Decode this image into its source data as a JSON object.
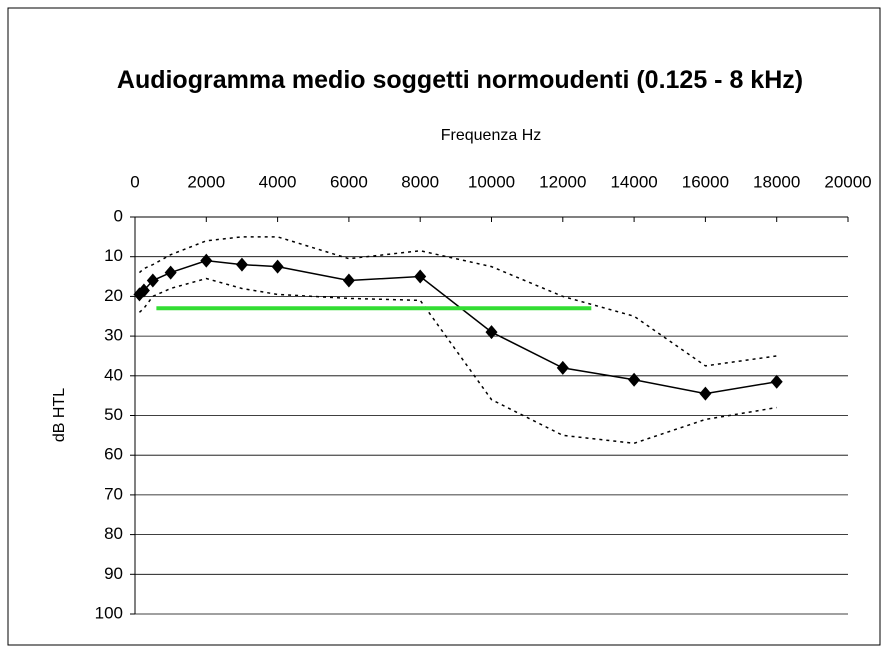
{
  "chart_data": {
    "type": "line",
    "title": "Audiogramma medio soggetti normoudenti (0.125 - 8 kHz)",
    "x_label": "Frequenza Hz",
    "y_label": "dB HTL",
    "x": [
      125,
      250,
      500,
      1000,
      2000,
      3000,
      4000,
      6000,
      8000,
      10000,
      12000,
      14000,
      16000,
      18000
    ],
    "series": [
      {
        "color": "#000000",
        "style": "solid",
        "marker": "diamond",
        "values": [
          19.5,
          18.5,
          16,
          14,
          11,
          12,
          12.5,
          16,
          15,
          29,
          38,
          41,
          44.5,
          41.5
        ]
      },
      {
        "color": "#000000",
        "style": "dashed",
        "values": [
          14,
          13,
          12,
          9.5,
          6,
          5,
          5,
          10.5,
          8.5,
          12.5,
          20,
          25,
          37.5,
          35
        ]
      },
      {
        "color": "#000000",
        "style": "dashed",
        "values": [
          24,
          23,
          20,
          18,
          15.5,
          18,
          19.5,
          20.5,
          21,
          46,
          55,
          57,
          51,
          48
        ]
      },
      {
        "color": "#33dd33",
        "style": "solid",
        "width": 4,
        "x": [
          600,
          12800
        ],
        "values": [
          23,
          23
        ]
      }
    ],
    "xlim": [
      0,
      20000
    ],
    "xticks": [
      0,
      2000,
      4000,
      6000,
      8000,
      10000,
      12000,
      14000,
      16000,
      18000,
      20000
    ],
    "ylim": [
      0,
      100
    ],
    "yticks": [
      0,
      10,
      20,
      30,
      40,
      50,
      60,
      70,
      80,
      90,
      100
    ],
    "y_inverted": true,
    "x_axis_position": "top",
    "grid": true
  }
}
